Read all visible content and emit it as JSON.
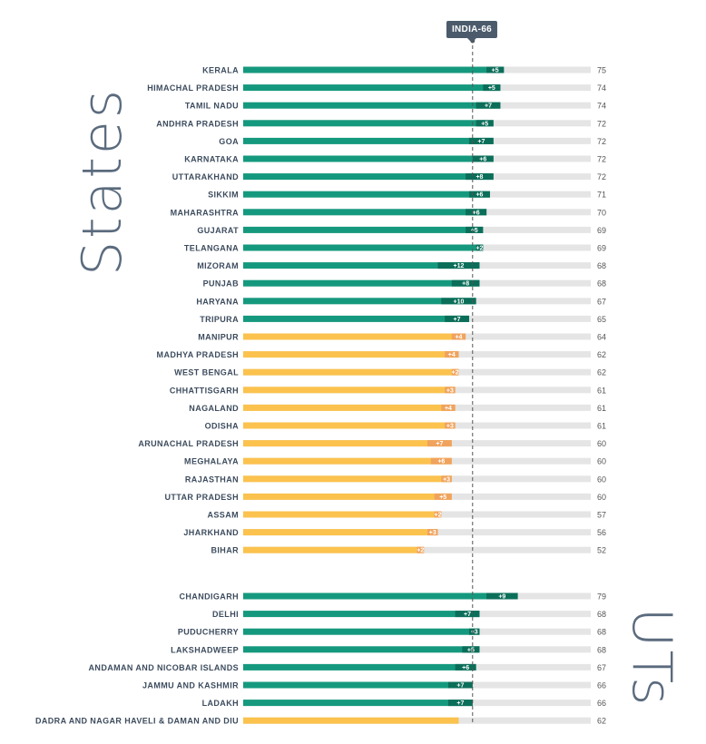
{
  "india_marker": {
    "label": "INDIA-66",
    "value": 66
  },
  "groups": {
    "states": "States",
    "uts": "UTs"
  },
  "colors": {
    "front_runner": "#15997e",
    "front_runner_change": "#0b6e59",
    "performer": "#fbc24e",
    "performer_change": "#f0a35e",
    "track": "#e5e5e5",
    "label": "#3d4c5e",
    "score": "#555555",
    "india_line": "#555555"
  },
  "chart_data": {
    "type": "bar",
    "orientation": "horizontal",
    "xlim": [
      0,
      100
    ],
    "reference_line": {
      "label": "INDIA-66",
      "value": 66
    },
    "states": [
      {
        "name": "KERALA",
        "score": 75,
        "change": "+5",
        "category": "front_runner"
      },
      {
        "name": "HIMACHAL PRADESH",
        "score": 74,
        "change": "+5",
        "category": "front_runner"
      },
      {
        "name": "TAMIL NADU",
        "score": 74,
        "change": "+7",
        "category": "front_runner"
      },
      {
        "name": "ANDHRA PRADESH",
        "score": 72,
        "change": "+5",
        "category": "front_runner"
      },
      {
        "name": "GOA",
        "score": 72,
        "change": "+7",
        "category": "front_runner"
      },
      {
        "name": "KARNATAKA",
        "score": 72,
        "change": "+6",
        "category": "front_runner"
      },
      {
        "name": "UTTARAKHAND",
        "score": 72,
        "change": "+8",
        "category": "front_runner"
      },
      {
        "name": "SIKKIM",
        "score": 71,
        "change": "+6",
        "category": "front_runner"
      },
      {
        "name": "MAHARASHTRA",
        "score": 70,
        "change": "+6",
        "category": "front_runner"
      },
      {
        "name": "GUJARAT",
        "score": 69,
        "change": "+5",
        "category": "front_runner"
      },
      {
        "name": "TELANGANA",
        "score": 69,
        "change": "+2",
        "category": "front_runner"
      },
      {
        "name": "MIZORAM",
        "score": 68,
        "change": "+12",
        "category": "front_runner"
      },
      {
        "name": "PUNJAB",
        "score": 68,
        "change": "+8",
        "category": "front_runner"
      },
      {
        "name": "HARYANA",
        "score": 67,
        "change": "+10",
        "category": "front_runner"
      },
      {
        "name": "TRIPURA",
        "score": 65,
        "change": "+7",
        "category": "front_runner"
      },
      {
        "name": "MANIPUR",
        "score": 64,
        "change": "+4",
        "category": "performer"
      },
      {
        "name": "MADHYA PRADESH",
        "score": 62,
        "change": "+4",
        "category": "performer"
      },
      {
        "name": "WEST BENGAL",
        "score": 62,
        "change": "+2",
        "category": "performer"
      },
      {
        "name": "CHHATTISGARH",
        "score": 61,
        "change": "+3",
        "category": "performer"
      },
      {
        "name": "NAGALAND",
        "score": 61,
        "change": "+4",
        "category": "performer"
      },
      {
        "name": "ODISHA",
        "score": 61,
        "change": "+3",
        "category": "performer"
      },
      {
        "name": "ARUNACHAL PRADESH",
        "score": 60,
        "change": "+7",
        "category": "performer"
      },
      {
        "name": "MEGHALAYA",
        "score": 60,
        "change": "+6",
        "category": "performer"
      },
      {
        "name": "RAJASTHAN",
        "score": 60,
        "change": "+3",
        "category": "performer"
      },
      {
        "name": "UTTAR PRADESH",
        "score": 60,
        "change": "+5",
        "category": "performer"
      },
      {
        "name": "ASSAM",
        "score": 57,
        "change": "+2",
        "category": "performer"
      },
      {
        "name": "JHARKHAND",
        "score": 56,
        "change": "+3",
        "category": "performer"
      },
      {
        "name": "BIHAR",
        "score": 52,
        "change": "+2",
        "category": "performer"
      }
    ],
    "uts": [
      {
        "name": "CHANDIGARH",
        "score": 79,
        "change": "+9",
        "category": "front_runner"
      },
      {
        "name": "DELHI",
        "score": 68,
        "change": "+7",
        "category": "front_runner"
      },
      {
        "name": "PUDUCHERRY",
        "score": 68,
        "change": "+3",
        "category": "front_runner"
      },
      {
        "name": "LAKSHADWEEP",
        "score": 68,
        "change": "+5",
        "category": "front_runner"
      },
      {
        "name": "ANDAMAN AND NICOBAR ISLANDS",
        "score": 67,
        "change": "+6",
        "category": "front_runner"
      },
      {
        "name": "JAMMU AND KASHMIR",
        "score": 66,
        "change": "+7",
        "category": "front_runner"
      },
      {
        "name": "LADAKH",
        "score": 66,
        "change": "+7",
        "category": "front_runner"
      },
      {
        "name": "DADRA AND NAGAR HAVELI & DAMAN AND DIU",
        "score": 62,
        "change": "",
        "category": "performer"
      }
    ]
  }
}
